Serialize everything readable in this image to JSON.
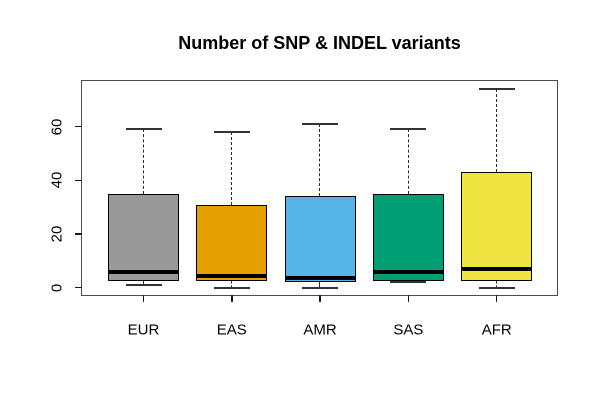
{
  "chart_data": {
    "type": "boxplot",
    "title": "Number of SNP & INDEL variants",
    "categories": [
      "EUR",
      "EAS",
      "AMR",
      "SAS",
      "AFR"
    ],
    "series": [
      {
        "name": "EUR",
        "color": "#999999",
        "whisker_low": 1,
        "q1": 2.5,
        "median": 6,
        "q3": 35,
        "whisker_high": 59
      },
      {
        "name": "EAS",
        "color": "#E69F00",
        "whisker_low": 0,
        "q1": 2.5,
        "median": 4.5,
        "q3": 31,
        "whisker_high": 58
      },
      {
        "name": "AMR",
        "color": "#56B4E9",
        "whisker_low": 0,
        "q1": 2,
        "median": 3.5,
        "q3": 34,
        "whisker_high": 61
      },
      {
        "name": "SAS",
        "color": "#009E73",
        "whisker_low": 2,
        "q1": 2.5,
        "median": 6,
        "q3": 35,
        "whisker_high": 59
      },
      {
        "name": "AFR",
        "color": "#F0E442",
        "whisker_low": 0,
        "q1": 2.5,
        "median": 7,
        "q3": 43,
        "whisker_high": 74
      }
    ],
    "y_axis": {
      "tick_values": [
        0,
        20,
        40,
        60
      ],
      "tick_labels": [
        "0",
        "20",
        "40",
        "60"
      ],
      "range": [
        -3,
        77.5
      ]
    },
    "xlabel": "",
    "ylabel": "",
    "grid": false,
    "legend": "none"
  }
}
